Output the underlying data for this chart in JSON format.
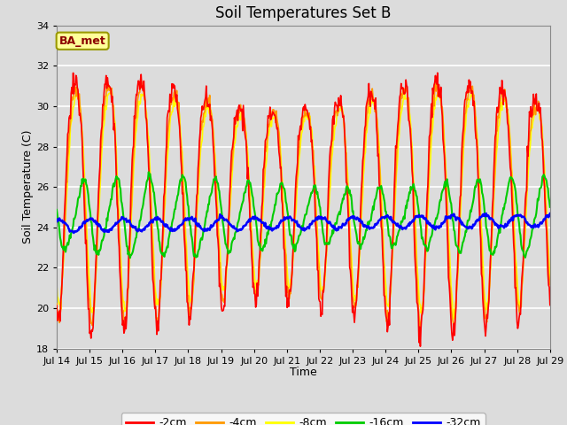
{
  "title": "Soil Temperatures Set B",
  "xlabel": "Time",
  "ylabel": "Soil Temperature (C)",
  "ylim": [
    18,
    34
  ],
  "annotation": "BA_met",
  "legend_labels": [
    "-2cm",
    "-4cm",
    "-8cm",
    "-16cm",
    "-32cm"
  ],
  "line_colors": [
    "#ff0000",
    "#ff9900",
    "#ffff00",
    "#00cc00",
    "#0000ff"
  ],
  "line_widths": [
    1.2,
    1.2,
    1.2,
    1.5,
    1.8
  ],
  "bg_color": "#dcdcdc",
  "plot_bg_color": "#dcdcdc",
  "grid_color": "#ffffff",
  "xtick_labels": [
    "Jul 14",
    "Jul 15",
    "Jul 16",
    "Jul 17",
    "Jul 18",
    "Jul 19",
    "Jul 20",
    "Jul 21",
    "Jul 22",
    "Jul 23",
    "Jul 24",
    "Jul 25",
    "Jul 26",
    "Jul 27",
    "Jul 28",
    "Jul 29"
  ],
  "figsize": [
    6.4,
    4.8
  ],
  "dpi": 100
}
